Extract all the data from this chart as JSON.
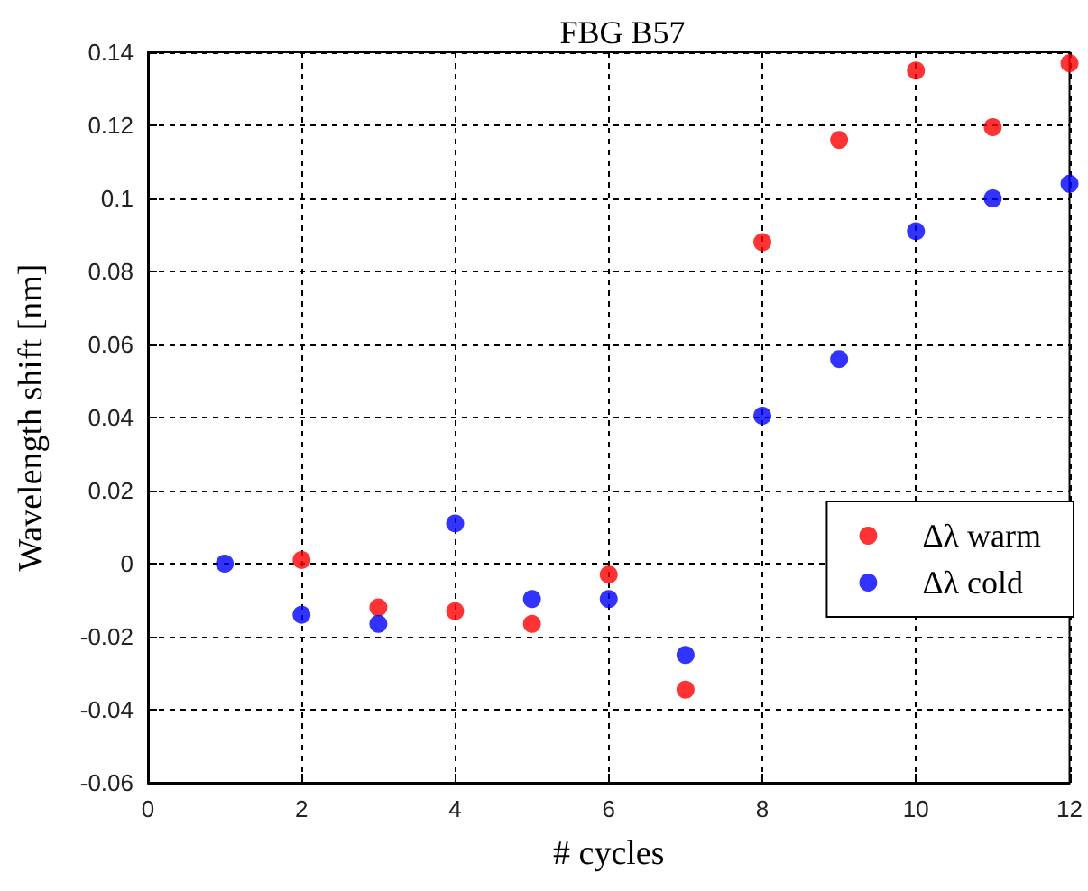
{
  "chart_data": {
    "type": "scatter",
    "title": "FBG B57",
    "xlabel": "# cycles",
    "ylabel": "Wavelength shift [nm]",
    "x": [
      1,
      2,
      3,
      4,
      5,
      6,
      7,
      8,
      9,
      10,
      11,
      12
    ],
    "series": [
      {
        "name": "Δλ warm",
        "color": "#ff0000",
        "values": [
          null,
          0.001,
          -0.012,
          -0.013,
          -0.0165,
          -0.003,
          -0.0345,
          0.088,
          0.116,
          0.135,
          0.1195,
          0.137
        ]
      },
      {
        "name": "Δλ cold",
        "color": "#0000ff",
        "values": [
          0,
          -0.014,
          -0.0165,
          0.011,
          -0.0097,
          -0.0097,
          -0.025,
          0.0405,
          0.056,
          0.091,
          0.1,
          0.104
        ]
      }
    ],
    "xlim": [
      0,
      12
    ],
    "xticks": [
      0,
      2,
      4,
      6,
      8,
      10,
      12
    ],
    "ylim": [
      -0.06,
      0.14
    ],
    "yticks": [
      -0.06,
      -0.04,
      -0.02,
      0,
      0.02,
      0.04,
      0.06,
      0.08,
      0.1,
      0.12,
      0.14
    ],
    "grid": true,
    "legend": "right",
    "marker": "circle"
  }
}
